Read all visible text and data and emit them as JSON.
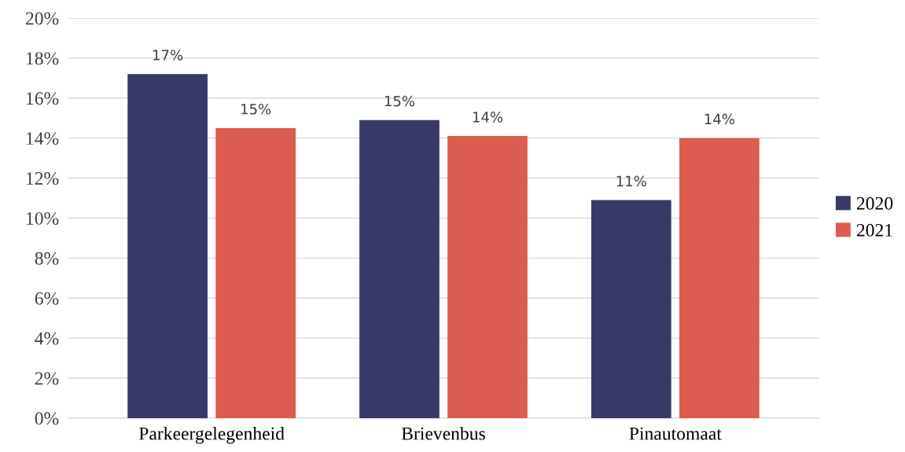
{
  "chart_data": {
    "type": "bar",
    "categories": [
      "Parkeergelegenheid",
      "Brievenbus",
      "Pinautomaat"
    ],
    "series": [
      {
        "name": "2020",
        "color": "#383a66",
        "values": [
          17.2,
          14.9,
          10.9
        ],
        "value_labels": [
          "17%",
          "15%",
          "11%"
        ]
      },
      {
        "name": "2021",
        "color": "#dd5c50",
        "values": [
          14.5,
          14.1,
          14.0
        ],
        "value_labels": [
          "15%",
          "14%",
          "14%"
        ]
      }
    ],
    "ylim": [
      0,
      20
    ],
    "yticks": [
      {
        "value": 0,
        "label": "0%"
      },
      {
        "value": 2,
        "label": "2%"
      },
      {
        "value": 4,
        "label": "4%"
      },
      {
        "value": 6,
        "label": "6%"
      },
      {
        "value": 8,
        "label": "8%"
      },
      {
        "value": 10,
        "label": "10%"
      },
      {
        "value": 12,
        "label": "12%"
      },
      {
        "value": 14,
        "label": "14%"
      },
      {
        "value": 16,
        "label": "16%"
      },
      {
        "value": 18,
        "label": "18%"
      },
      {
        "value": 20,
        "label": "20%"
      }
    ],
    "grid": "y",
    "legend": "right"
  }
}
